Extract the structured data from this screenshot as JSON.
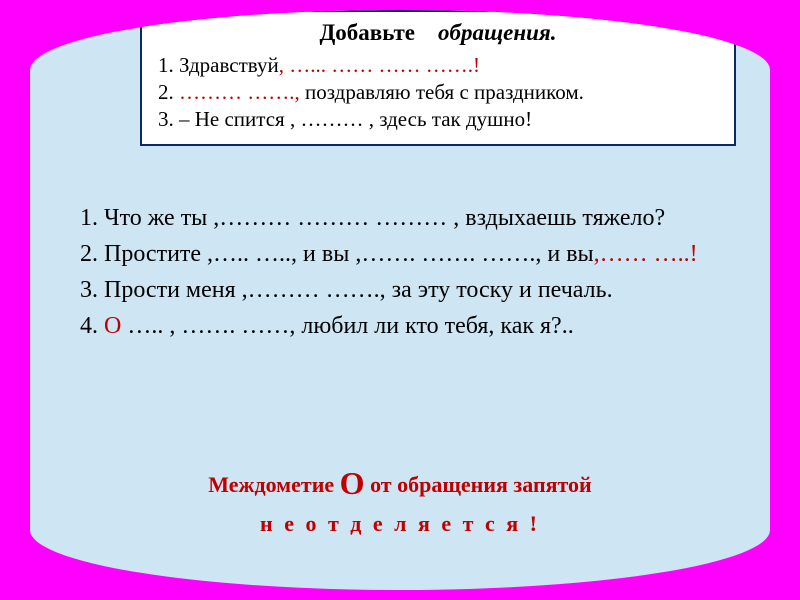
{
  "colors": {
    "stage_bg": "#ff00ff",
    "cylinder_bg": "#cee6f3",
    "card_bg": "#ffffff",
    "card_border": "#0a2a66",
    "text": "#000000",
    "accent_red": "#c00000"
  },
  "card": {
    "title_plain": "Добавьте",
    "title_em": "обращения.",
    "l1_a": "1.  Здравствуй",
    "l1_b": ",  …...   ……   ……    …….!",
    "l2_a": "2. ",
    "l2_b": "………    …….",
    "l2_c": ",",
    "l2_d": "  поздравляю тебя с праздником.",
    "l3": "3. – Не спится , ……… ,  здесь так душно!"
  },
  "body": {
    "p1": "1. Что же ты  ,………   ………    ……… , вздыхаешь тяжело?",
    "p2_a": "2.  Простите  ,…..   …..,  и  вы  ,…….  …….  …….,  и вы",
    "p2_b": ",……   …..!",
    "p3": "3.  Прости  меня ,………    ……., за эту тоску и печаль.",
    "p4_a": "4. ",
    "p4_b": "О",
    "p4_c": "  ….. ,  …….   ……,  любил ли кто тебя,  как я?.."
  },
  "footer": {
    "l1_a": "Междометие ",
    "l1_b": "О",
    "l1_c": " от  обращения  запятой",
    "l2": "н е   о т д е л я е т с я !"
  }
}
